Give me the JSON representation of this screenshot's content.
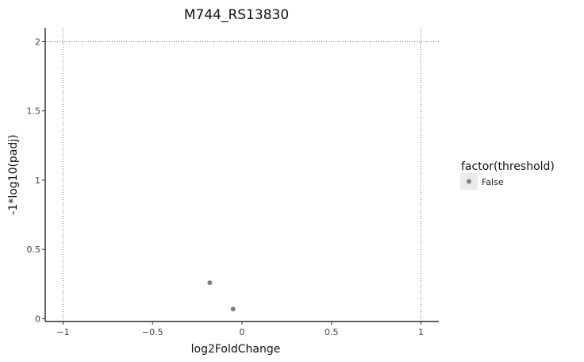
{
  "chart_data": {
    "type": "scatter",
    "title": "M744_RS13830",
    "xlabel": "log2FoldChange",
    "ylabel": "-1*log10(padj)",
    "xlim": [
      -1.1,
      1.1
    ],
    "ylim": [
      -0.02,
      2.1
    ],
    "x_ticks": [
      -1,
      -0.5,
      0,
      0.5,
      1
    ],
    "x_tick_labels": [
      "−1",
      "−0.5",
      "0",
      "0.5",
      "1"
    ],
    "y_ticks": [
      0,
      0.5,
      1,
      1.5,
      2
    ],
    "y_tick_labels": [
      "0",
      "0.5",
      "1",
      "1.5",
      "2"
    ],
    "reference_lines": {
      "vertical": [
        -1,
        1
      ],
      "horizontal": [
        2
      ]
    },
    "grid": false,
    "legend": {
      "title": "factor(threshold)",
      "placement": "right",
      "entries": [
        {
          "label": "False",
          "color": "#808080"
        }
      ]
    },
    "series": [
      {
        "category": "False",
        "color": "#808080",
        "points": [
          {
            "x": -0.18,
            "y": 0.26
          },
          {
            "x": -0.05,
            "y": 0.07
          }
        ]
      }
    ]
  }
}
